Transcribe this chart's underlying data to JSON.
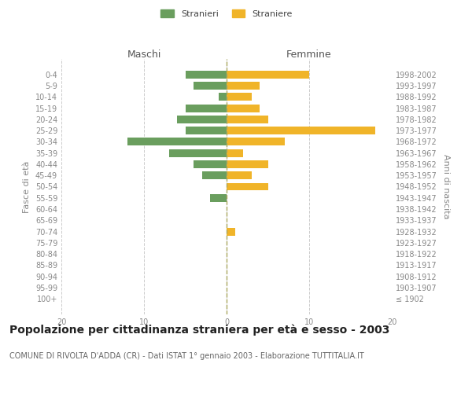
{
  "age_groups": [
    "100+",
    "95-99",
    "90-94",
    "85-89",
    "80-84",
    "75-79",
    "70-74",
    "65-69",
    "60-64",
    "55-59",
    "50-54",
    "45-49",
    "40-44",
    "35-39",
    "30-34",
    "25-29",
    "20-24",
    "15-19",
    "10-14",
    "5-9",
    "0-4"
  ],
  "birth_years": [
    "≤ 1902",
    "1903-1907",
    "1908-1912",
    "1913-1917",
    "1918-1922",
    "1923-1927",
    "1928-1932",
    "1933-1937",
    "1938-1942",
    "1943-1947",
    "1948-1952",
    "1953-1957",
    "1958-1962",
    "1963-1967",
    "1968-1972",
    "1973-1977",
    "1978-1982",
    "1983-1987",
    "1988-1992",
    "1993-1997",
    "1998-2002"
  ],
  "maschi": [
    0,
    0,
    0,
    0,
    0,
    0,
    0,
    0,
    0,
    2,
    0,
    3,
    4,
    7,
    12,
    5,
    6,
    5,
    1,
    4,
    5
  ],
  "femmine": [
    0,
    0,
    0,
    0,
    0,
    0,
    1,
    0,
    0,
    0,
    5,
    3,
    5,
    2,
    7,
    18,
    5,
    4,
    3,
    4,
    10
  ],
  "male_color": "#6a9e5e",
  "female_color": "#f0b429",
  "background_color": "#ffffff",
  "grid_color": "#cccccc",
  "title": "Popolazione per cittadinanza straniera per età e sesso - 2003",
  "subtitle": "COMUNE DI RIVOLTA D'ADDA (CR) - Dati ISTAT 1° gennaio 2003 - Elaborazione TUTTITALIA.IT",
  "ylabel_left": "Fasce di età",
  "ylabel_right": "Anni di nascita",
  "label_maschi": "Maschi",
  "label_femmine": "Femmine",
  "legend_stranieri": "Stranieri",
  "legend_straniere": "Straniere",
  "xlim": 20,
  "title_fontsize": 10,
  "subtitle_fontsize": 7,
  "tick_fontsize": 7,
  "axis_label_fontsize": 8,
  "header_fontsize": 9,
  "legend_fontsize": 8,
  "bar_height": 0.7
}
